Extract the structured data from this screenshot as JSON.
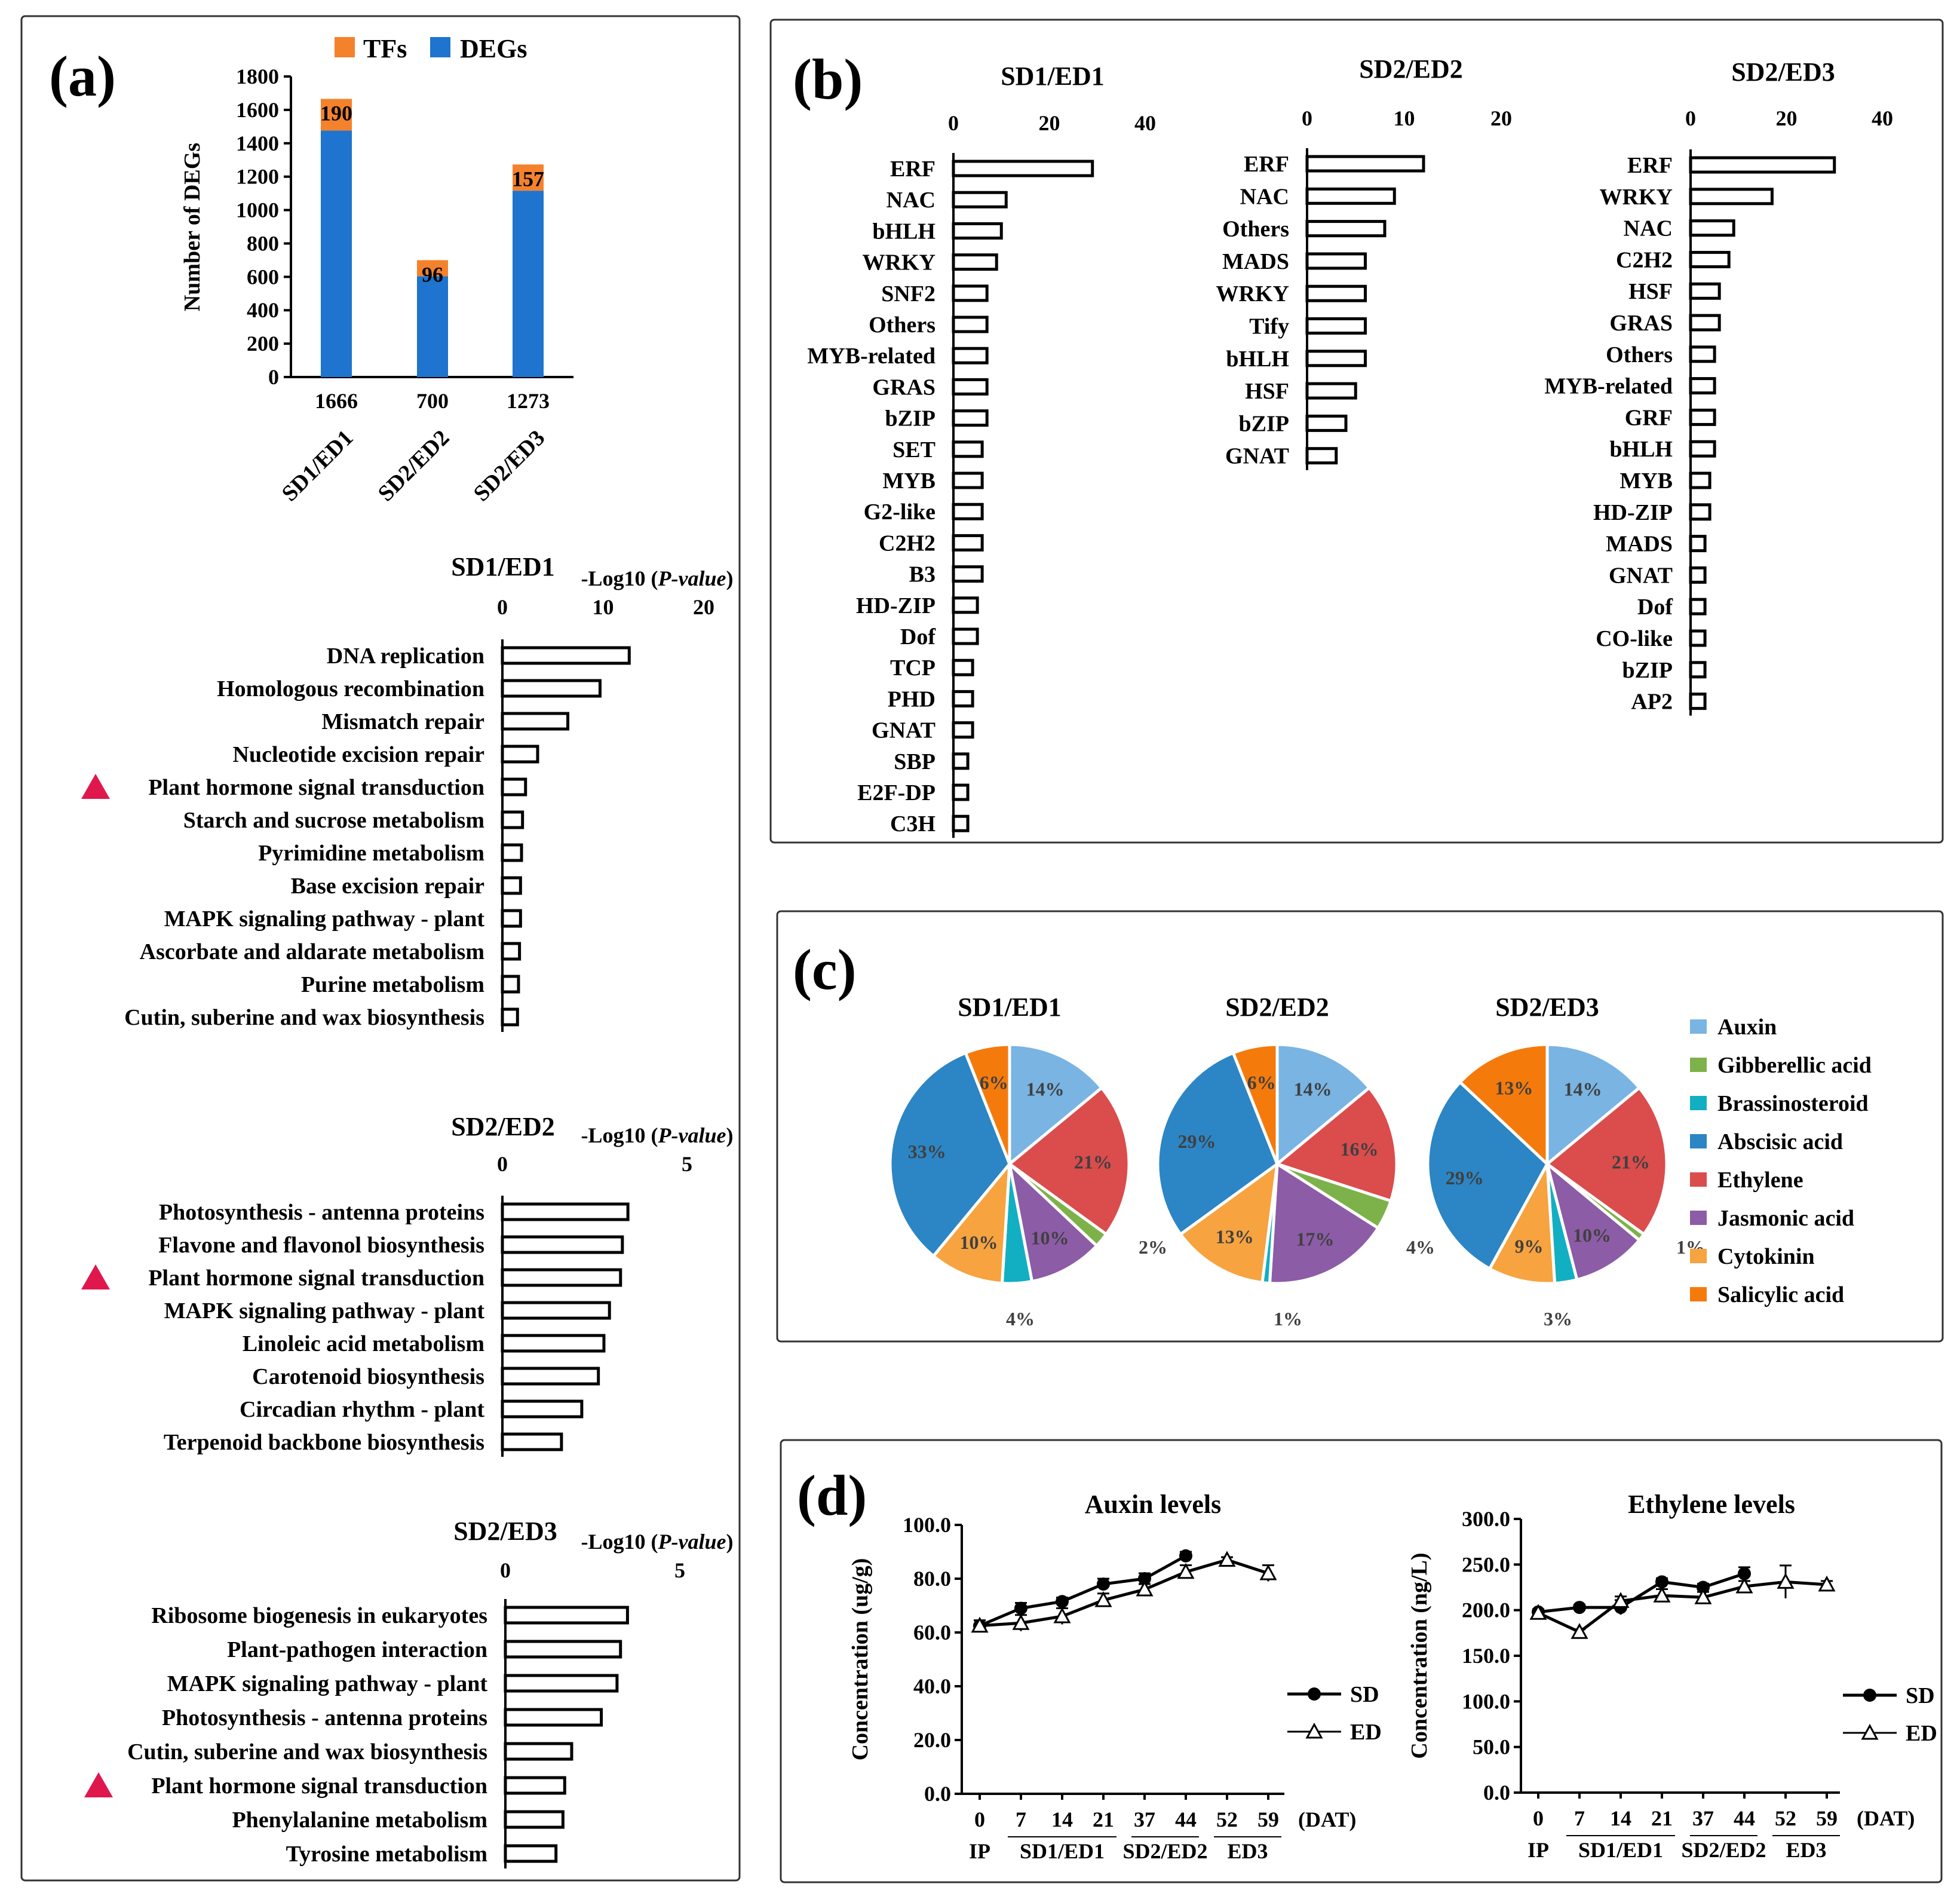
{
  "panels": {
    "a": "(a)",
    "b": "(b)",
    "c": "(c)",
    "d": "(d)"
  },
  "colors": {
    "tfs": "#F4822C",
    "degs": "#1E74CE",
    "auxin": "#79B4E3",
    "gibberellic": "#7DB24A",
    "brassinosteroid": "#12AFC2",
    "abscisic": "#2C85C4",
    "ethylene": "#DB4C4C",
    "jasmonic": "#8C5CA6",
    "cytokinin": "#F7A340",
    "salicylic": "#F57A0C",
    "triangle": "#E0174D"
  },
  "chart_data": [
    {
      "id": "deg_counts",
      "type": "bar",
      "legend": [
        "TFs",
        "DEGs"
      ],
      "categories": [
        "SD1/ED1",
        "SD2/ED2",
        "SD2/ED3"
      ],
      "totals": [
        "1666",
        "700",
        "1273"
      ],
      "series": [
        {
          "name": "DEGs",
          "values": [
            1476,
            604,
            1116
          ]
        },
        {
          "name": "TFs",
          "values": [
            190,
            96,
            157
          ]
        }
      ],
      "tf_labels": [
        "190",
        "96",
        "157"
      ],
      "ylabel": "Number of DEGs",
      "ylim": [
        0,
        1800
      ],
      "yticks": [
        "0",
        "200",
        "400",
        "600",
        "800",
        "1000",
        "1200",
        "1400",
        "1600",
        "1800"
      ]
    },
    {
      "id": "kegg_sd1",
      "type": "bar",
      "orientation": "horizontal",
      "title": "SD1/ED1",
      "axis_label": "-Log10 (P-value)",
      "axis_label_main": "-Log10 (",
      "axis_label_italic": "P-value",
      "axis_label_end": ")",
      "xlim": [
        0,
        20
      ],
      "xticks": [
        "0",
        "10",
        "20"
      ],
      "categories": [
        "DNA replication",
        "Homologous recombination",
        "Mismatch repair",
        "Nucleotide excision repair",
        "Plant hormone signal transduction",
        "Starch and sucrose metabolism",
        "Pyrimidine metabolism",
        "Base excision repair",
        "MAPK signaling pathway - plant",
        "Ascorbate and aldarate metabolism",
        "Purine metabolism",
        "Cutin, suberine and wax biosynthesis"
      ],
      "values": [
        12.6,
        9.7,
        6.5,
        3.5,
        2.3,
        2.0,
        1.9,
        1.8,
        1.8,
        1.7,
        1.6,
        1.5
      ],
      "highlight": 4
    },
    {
      "id": "kegg_sd2ed2",
      "type": "bar",
      "orientation": "horizontal",
      "title": "SD2/ED2",
      "axis_label": "-Log10 (P-value)",
      "axis_label_main": "-Log10 (",
      "axis_label_italic": "P-value",
      "axis_label_end": ")",
      "xlim": [
        0,
        5
      ],
      "xticks": [
        "0",
        "5"
      ],
      "categories": [
        "Photosynthesis - antenna proteins",
        "Flavone and flavonol biosynthesis",
        "Plant hormone signal transduction",
        "MAPK signaling pathway - plant",
        "Linoleic acid metabolism",
        "Carotenoid biosynthesis",
        "Circadian rhythm - plant",
        "Terpenoid backbone biosynthesis"
      ],
      "values": [
        3.4,
        3.25,
        3.2,
        2.9,
        2.75,
        2.6,
        2.15,
        1.6
      ],
      "highlight": 2
    },
    {
      "id": "kegg_sd2ed3",
      "type": "bar",
      "orientation": "horizontal",
      "title": "SD2/ED3",
      "axis_label": "-Log10 (P-value)",
      "axis_label_main": "-Log10 (",
      "axis_label_italic": "P-value",
      "axis_label_end": ")",
      "xlim": [
        0,
        5
      ],
      "xticks": [
        "0",
        "5"
      ],
      "categories": [
        "Ribosome biogenesis in eukaryotes",
        "Plant-pathogen interaction",
        "MAPK signaling pathway - plant",
        "Photosynthesis - antenna proteins",
        "Cutin, suberine and wax biosynthesis",
        "Plant hormone signal transduction",
        "Phenylalanine metabolism",
        "Tyrosine metabolism"
      ],
      "values": [
        3.5,
        3.3,
        3.2,
        2.75,
        1.9,
        1.7,
        1.65,
        1.45
      ],
      "highlight": 5
    },
    {
      "id": "tf_sd1",
      "type": "bar",
      "orientation": "horizontal",
      "title": "SD1/ED1",
      "xlim": [
        0,
        40
      ],
      "xticks": [
        "0",
        "20",
        "40"
      ],
      "categories": [
        "ERF",
        "NAC",
        "bHLH",
        "WRKY",
        "SNF2",
        "Others",
        "MYB-related",
        "GRAS",
        "bZIP",
        "SET",
        "MYB",
        "G2-like",
        "C2H2",
        "B3",
        "HD-ZIP",
        "Dof",
        "TCP",
        "PHD",
        "GNAT",
        "SBP",
        "E2F-DP",
        "C3H"
      ],
      "values": [
        29,
        11,
        10,
        9,
        7,
        7,
        7,
        7,
        7,
        6,
        6,
        6,
        6,
        6,
        5,
        5,
        4,
        4,
        4,
        3,
        3,
        3
      ]
    },
    {
      "id": "tf_sd2ed2",
      "type": "bar",
      "orientation": "horizontal",
      "title": "SD2/ED2",
      "xlim": [
        0,
        20
      ],
      "xticks": [
        "0",
        "10",
        "20"
      ],
      "categories": [
        "ERF",
        "NAC",
        "Others",
        "MADS",
        "WRKY",
        "Tify",
        "bHLH",
        "HSF",
        "bZIP",
        "GNAT"
      ],
      "values": [
        12,
        9,
        8,
        6,
        6,
        6,
        6,
        5,
        4,
        3
      ]
    },
    {
      "id": "tf_sd2ed3",
      "type": "bar",
      "orientation": "horizontal",
      "title": "SD2/ED3",
      "xlim": [
        0,
        40
      ],
      "xticks": [
        "0",
        "20",
        "40"
      ],
      "categories": [
        "ERF",
        "WRKY",
        "NAC",
        "C2H2",
        "HSF",
        "GRAS",
        "Others",
        "MYB-related",
        "GRF",
        "bHLH",
        "MYB",
        "HD-ZIP",
        "MADS",
        "GNAT",
        "Dof",
        "CO-like",
        "bZIP",
        "AP2"
      ],
      "values": [
        30,
        17,
        9,
        8,
        6,
        6,
        5,
        5,
        5,
        5,
        4,
        4,
        3,
        3,
        3,
        3,
        3,
        3
      ]
    },
    {
      "id": "hormone_pies",
      "type": "pie",
      "legend": [
        "Auxin",
        "Gibberellic acid",
        "Brassinosteroid",
        "Abscisic acid",
        "Ethylene",
        "Jasmonic acid",
        "Cytokinin",
        "Salicylic acid"
      ],
      "pies": [
        {
          "title": "SD1/ED1",
          "values": [
            14,
            21,
            2,
            10,
            4,
            10,
            33,
            6
          ],
          "labels": [
            "14%",
            "21%",
            "2%",
            "10%",
            "4%",
            "10%",
            "33%",
            "6%"
          ]
        },
        {
          "title": "SD2/ED2",
          "values": [
            14,
            16,
            4,
            17,
            1,
            13,
            29,
            6
          ],
          "labels": [
            "14%",
            "16%",
            "4%",
            "17%",
            "1%",
            "13%",
            "29%",
            "6%"
          ]
        },
        {
          "title": "SD2/ED3",
          "values": [
            14,
            21,
            1,
            10,
            3,
            9,
            29,
            13
          ],
          "labels": [
            "14%",
            "21%",
            "1%",
            "10%",
            "3%",
            "9%",
            "29%",
            "13%"
          ]
        }
      ],
      "slice_order": [
        "Auxin",
        "Ethylene",
        "Gibberellic acid",
        "Jasmonic acid",
        "Brassinosteroid",
        "Cytokinin",
        "Abscisic acid",
        "Salicylic acid"
      ]
    },
    {
      "id": "auxin_levels",
      "type": "line",
      "title": "Auxin levels",
      "ylabel": "Concentration (ug/g)",
      "ylim": [
        0,
        100
      ],
      "yticks": [
        "0.0",
        "20.0",
        "40.0",
        "60.0",
        "80.0",
        "100.0"
      ],
      "x": [
        "0",
        "7",
        "14",
        "21",
        "37",
        "44",
        "52",
        "59"
      ],
      "xunit": "(DAT)",
      "groups": [
        "IP",
        "SD1/ED1",
        "SD2/ED2",
        "ED3"
      ],
      "series": [
        {
          "name": "SD",
          "values": [
            62.5,
            69,
            71.5,
            78,
            80,
            88.5,
            null,
            null
          ],
          "err": [
            2,
            2,
            1.5,
            2,
            2,
            1.5,
            0,
            0
          ]
        },
        {
          "name": "ED",
          "values": [
            62.5,
            63.5,
            66,
            72,
            76,
            82.5,
            87,
            82
          ],
          "err": [
            2,
            3,
            3,
            2.5,
            2,
            2.5,
            1,
            3
          ]
        }
      ]
    },
    {
      "id": "ethylene_levels",
      "type": "line",
      "title": "Ethylene levels",
      "ylabel": "Concentration (ng/L)",
      "ylim": [
        0,
        300
      ],
      "yticks": [
        "0.0",
        "50.0",
        "100.0",
        "150.0",
        "200.0",
        "250.0",
        "300.0"
      ],
      "x": [
        "0",
        "7",
        "14",
        "21",
        "37",
        "44",
        "52",
        "59"
      ],
      "xunit": "(DAT)",
      "groups": [
        "IP",
        "SD1/ED1",
        "SD2/ED2",
        "ED3"
      ],
      "series": [
        {
          "name": "SD",
          "values": [
            198,
            203,
            203,
            231,
            225,
            240,
            null,
            null
          ],
          "err": [
            3,
            3,
            8,
            4,
            4,
            7,
            0,
            0
          ]
        },
        {
          "name": "ED",
          "values": [
            197,
            176,
            210,
            216,
            214,
            226,
            231,
            228
          ],
          "err": [
            4,
            3,
            5,
            7,
            6,
            6,
            18,
            4
          ]
        }
      ]
    }
  ]
}
